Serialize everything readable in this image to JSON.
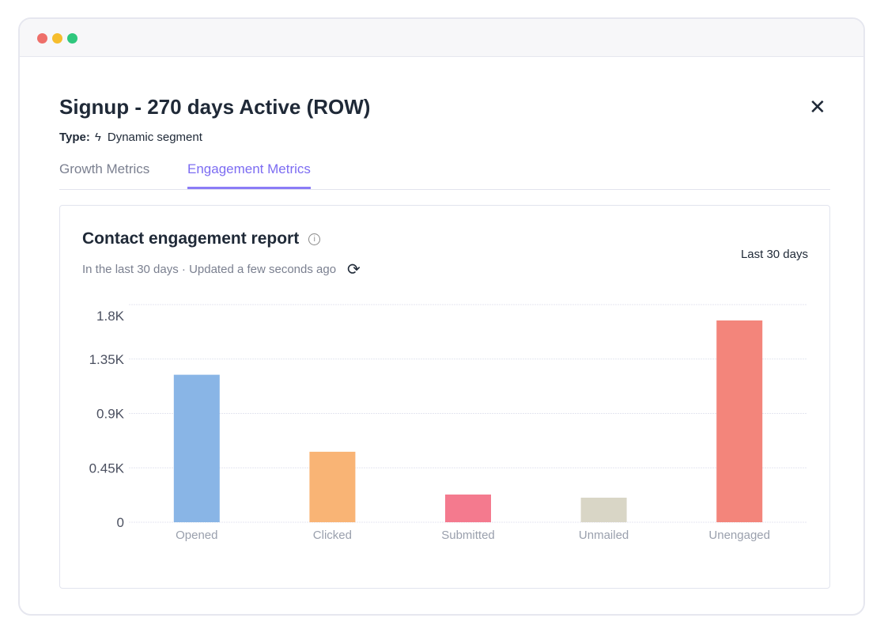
{
  "window": {
    "dots": [
      "#ee6f6a",
      "#f6bd2d",
      "#2fc77d"
    ]
  },
  "header": {
    "title": "Signup - 270 days Active (ROW)",
    "close": "✕",
    "type_label": "Type:",
    "type_icon": "lightning-icon",
    "type_value": "Dynamic segment"
  },
  "tabs": [
    {
      "label": "Growth Metrics",
      "active": false
    },
    {
      "label": "Engagement Metrics",
      "active": true
    }
  ],
  "card": {
    "title": "Contact engagement report",
    "info": "i",
    "subtitle": "In the last 30 days · Updated a few seconds ago",
    "refresh": "⟳",
    "range": "Last 30 days"
  },
  "chart_data": {
    "type": "bar",
    "title": "Contact engagement report",
    "categories": [
      "Opened",
      "Clicked",
      "Submitted",
      "Unmailed",
      "Unengaged"
    ],
    "values": [
      1220,
      583,
      229,
      203,
      1669
    ],
    "colors": [
      "#89b5e6",
      "#f9b475",
      "#f47a8e",
      "#d9d6c6",
      "#f3857b"
    ],
    "yticks": [
      0,
      450,
      900,
      1350,
      1800
    ],
    "ytick_labels": [
      "0",
      "0.45K",
      "0.9K",
      "1.35K",
      "1.8K"
    ],
    "ylim": [
      0,
      1800
    ],
    "grid": true
  }
}
